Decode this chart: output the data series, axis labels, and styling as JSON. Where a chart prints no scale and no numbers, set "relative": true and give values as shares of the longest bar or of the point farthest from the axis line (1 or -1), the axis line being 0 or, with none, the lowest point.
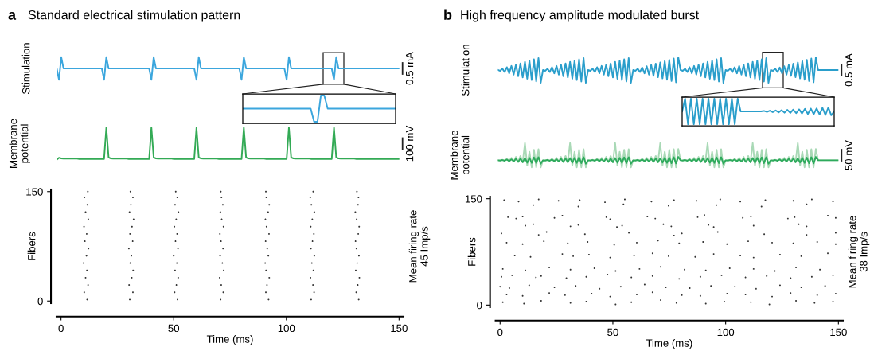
{
  "chart_data": [
    {
      "type": "line",
      "title": "Standard electrical stimulation pattern",
      "ylabel": "Stimulation",
      "annotations": [
        "a",
        "0.5 mA"
      ],
      "relative": true,
      "categories": [
        null,
        null,
        null,
        null,
        null,
        null,
        null,
        null,
        null,
        null,
        null,
        null,
        null,
        null,
        null,
        null,
        null,
        null,
        null,
        null,
        null,
        null,
        null,
        null,
        null,
        null,
        null,
        null,
        null,
        null,
        null,
        null,
        null,
        null,
        null,
        null,
        null,
        null,
        null,
        null,
        null,
        null,
        null,
        null,
        null,
        null,
        null,
        null,
        null,
        null,
        null,
        null,
        null,
        null,
        null,
        null,
        null,
        null,
        null,
        null,
        null,
        null,
        null,
        null,
        null,
        null,
        null,
        null,
        null,
        null,
        null,
        null,
        null,
        null,
        null,
        null,
        null,
        null,
        null,
        null,
        null,
        null,
        null,
        null,
        null,
        null,
        null,
        null,
        null,
        null,
        null,
        null,
        null,
        null,
        null,
        null,
        null,
        null,
        null,
        null,
        null,
        null,
        null,
        null,
        null,
        null,
        null,
        null,
        null,
        null,
        null,
        null,
        null,
        null,
        null,
        null,
        null,
        null,
        null,
        null,
        null,
        null,
        null,
        null,
        null,
        null,
        null,
        null,
        null,
        null,
        null,
        null,
        null,
        null,
        null,
        null,
        null,
        null,
        null,
        null,
        null,
        null,
        null,
        null,
        null,
        null,
        null,
        null,
        null,
        null,
        null,
        null,
        null
      ],
      "series": [
        {
          "color": "#3ba6dd",
          "values": [
            0.5,
            0,
            1,
            0.5,
            0.5,
            0.5,
            0.5,
            0.5,
            0.5,
            0.5,
            0.5,
            0.5,
            0.5,
            0.5,
            0.5,
            0.5,
            0.5,
            0.5,
            0.5,
            0.5,
            0.5,
            0,
            1,
            0.5,
            0.5,
            0.5,
            0.5,
            0.5,
            0.5,
            0.5,
            0.5,
            0.5,
            0.5,
            0.5,
            0.5,
            0.5,
            0.5,
            0.5,
            0.5,
            0.5,
            0.5,
            0.5,
            0,
            1,
            0.5,
            0.5,
            0.5,
            0.5,
            0.5,
            0.5,
            0.5,
            0.5,
            0.5,
            0.5,
            0.5,
            0.5,
            0.5,
            0.5,
            0.5,
            0.5,
            0.5,
            0.5,
            0,
            1,
            0.5,
            0.5,
            0.5,
            0.5,
            0.5,
            0.5,
            0.5,
            0.5,
            0.5,
            0.5,
            0.5,
            0.5,
            0.5,
            0.5,
            0.5,
            0.5,
            0.5,
            0.5,
            0,
            1,
            0.5,
            0.5,
            0.5,
            0.5,
            0.5,
            0.5,
            0.5,
            0.5,
            0.5,
            0.5,
            0.5,
            0.5,
            0.5,
            0.5,
            0.5,
            0.5,
            0.5,
            0.5,
            0,
            1,
            0.5,
            0.5,
            0.5,
            0.5,
            0.5,
            0.5,
            0.5,
            0.5,
            0.5,
            0.5,
            0.5,
            0.5,
            0.5,
            0.5,
            0.5,
            0.5,
            0.5,
            0.5,
            0.5,
            0,
            1,
            0.5,
            0.5,
            0.5,
            0.5,
            0.5,
            0.5,
            0.5,
            0.5,
            0.5,
            0.5,
            0.5,
            0.5,
            0.5,
            0.5,
            0.5,
            0.5,
            0.5,
            0.5,
            0.5,
            0.5,
            0.5,
            0.5,
            0.5,
            0.5,
            0.5,
            0.5,
            0.5,
            0.5
          ]
        }
      ]
    },
    {
      "type": "line",
      "relative": true,
      "categories": [
        null,
        null,
        null,
        null,
        null,
        null,
        null,
        null,
        null,
        null,
        null,
        null,
        null,
        null,
        null,
        null,
        null,
        null,
        null,
        null,
        null,
        null,
        null,
        null,
        null,
        null,
        null,
        null,
        null,
        null,
        null,
        null,
        null,
        null,
        null,
        null,
        null,
        null,
        null,
        null,
        null,
        null,
        null,
        null,
        null,
        null
      ],
      "series": [
        {
          "color": "#3ba6dd",
          "values": [
            0.5,
            0.5,
            0.5,
            0.5,
            0.5,
            0.5,
            0.5,
            0.5,
            0.5,
            0.5,
            0.5,
            0.5,
            0.5,
            0.5,
            0.5,
            0.5,
            0.5,
            0.5,
            0.5,
            0.5,
            0.5,
            0,
            0,
            1,
            1,
            0.5,
            0.5,
            0.5,
            0.5,
            0.5,
            0.5,
            0.5,
            0.5,
            0.5,
            0.5,
            0.5,
            0.5,
            0.5,
            0.5,
            0.5,
            0.5,
            0.5,
            0.5,
            0.5,
            0.5,
            0.5
          ]
        }
      ]
    },
    {
      "type": "line",
      "ylabel": "Membrane\npotential",
      "annotations": [
        "100 mV"
      ],
      "relative": true,
      "categories": [
        null,
        null,
        null,
        null,
        null,
        null,
        null,
        null,
        null,
        null,
        null,
        null,
        null,
        null,
        null,
        null,
        null,
        null,
        null,
        null,
        null,
        null,
        null,
        null,
        null,
        null,
        null,
        null,
        null,
        null,
        null,
        null,
        null,
        null,
        null,
        null,
        null,
        null,
        null,
        null,
        null,
        null,
        null,
        null,
        null,
        null,
        null,
        null,
        null,
        null,
        null,
        null,
        null,
        null,
        null,
        null,
        null,
        null,
        null,
        null,
        null,
        null,
        null,
        null,
        null,
        null,
        null,
        null,
        null,
        null,
        null,
        null,
        null,
        null,
        null,
        null,
        null,
        null,
        null,
        null,
        null,
        null,
        null,
        null,
        null,
        null,
        null,
        null,
        null,
        null,
        null,
        null,
        null,
        null,
        null,
        null,
        null,
        null,
        null,
        null,
        null,
        null,
        null,
        null,
        null,
        null,
        null,
        null,
        null,
        null,
        null,
        null,
        null,
        null,
        null,
        null,
        null,
        null,
        null,
        null,
        null,
        null,
        null,
        null,
        null,
        null,
        null,
        null,
        null,
        null,
        null,
        null,
        null,
        null,
        null,
        null,
        null,
        null,
        null,
        null,
        null,
        null,
        null,
        null,
        null,
        null,
        null,
        null,
        null,
        null,
        null,
        null,
        null
      ],
      "series": [
        {
          "color": "#33aa55",
          "values": [
            0,
            0.06,
            0.04,
            0.03,
            0.03,
            0.03,
            0.03,
            0.03,
            0.03,
            0.03,
            0.02,
            0.02,
            0.02,
            0.02,
            0.02,
            0.02,
            0.02,
            0.02,
            0.02,
            0.02,
            0.02,
            0.02,
            1,
            0.07,
            0.04,
            0.03,
            0.03,
            0.03,
            0.03,
            0.03,
            0.03,
            0.03,
            0.02,
            0.02,
            0.02,
            0.02,
            0.02,
            0.02,
            0.02,
            0.02,
            0.02,
            0.02,
            1,
            0.07,
            0.04,
            0.03,
            0.03,
            0.03,
            0.03,
            0.03,
            0.03,
            0.03,
            0.02,
            0.02,
            0.02,
            0.02,
            0.02,
            0.02,
            0.02,
            0.02,
            0.02,
            0.02,
            1,
            0.07,
            0.04,
            0.03,
            0.03,
            0.03,
            0.03,
            0.03,
            0.03,
            0.03,
            0.02,
            0.02,
            0.02,
            0.02,
            0.02,
            0.02,
            0.02,
            0.02,
            0.02,
            0.02,
            0.02,
            1,
            0.07,
            0.04,
            0.03,
            0.03,
            0.03,
            0.03,
            0.03,
            0.03,
            0.03,
            0.02,
            0.02,
            0.02,
            0.02,
            0.02,
            0.02,
            0.02,
            0.02,
            0.02,
            0.02,
            1,
            0.07,
            0.04,
            0.03,
            0.03,
            0.03,
            0.03,
            0.03,
            0.03,
            0.03,
            0.02,
            0.02,
            0.02,
            0.02,
            0.02,
            0.02,
            0.02,
            0.02,
            0.02,
            0.02,
            1,
            0.07,
            0.04,
            0.03,
            0.03,
            0.03,
            0.03,
            0.03,
            0.03,
            0.03,
            0.02,
            0.02,
            0.02,
            0.02,
            0.02,
            0.02,
            0.02,
            0.02,
            0.02,
            0.02,
            0.02,
            0.02,
            0.02,
            0.02,
            0.02,
            0.02,
            0.02,
            0.02,
            0.02,
            0.02
          ]
        }
      ]
    },
    {
      "type": "scatter",
      "xlabel": "Time (ms)",
      "ylabel": "Fibers",
      "annotations": [
        "Mean firing rate\n45 Imp/s"
      ],
      "xlim": [
        -2,
        152
      ],
      "ylim": [
        -3,
        153
      ],
      "xticks": [
        0,
        50,
        100,
        150
      ],
      "yticks": [
        0,
        150
      ],
      "marker": "circle",
      "series": [
        {
          "color": "#333333",
          "x": [
            11.6,
            10.3,
            12.0,
            10.9,
            11.5,
            10.0,
            11.3,
            12.2,
            10.6,
            11.4,
            10.2,
            12.1,
            10.9,
            11.7,
            10.4,
            11.9,
            30.5,
            31.9,
            30.2,
            31.4,
            32.0,
            30.7,
            31.2,
            30.1,
            31.8,
            30.6,
            31.5,
            32.2,
            30.4,
            31.0,
            31.9,
            30.8,
            51.7,
            50.4,
            51.2,
            52.0,
            50.6,
            51.4,
            50.0,
            51.9,
            50.8,
            51.5,
            50.3,
            51.1,
            52.1,
            50.6,
            51.6,
            50.9,
            70.8,
            72.0,
            71.1,
            70.4,
            72.2,
            71.6,
            70.6,
            71.9,
            71.0,
            70.5,
            72.1,
            71.3,
            70.7,
            71.8,
            71.2,
            70.9,
            92.1,
            90.9,
            91.4,
            92.4,
            91.0,
            90.6,
            92.0,
            91.5,
            90.8,
            92.3,
            91.2,
            90.7,
            91.9,
            92.4,
            91.1,
            90.9,
            111.0,
            112.3,
            111.8,
            110.7,
            112.0,
            111.3,
            112.4,
            110.9,
            111.6,
            112.2,
            110.8,
            111.5,
            112.4,
            111.1,
            110.6,
            111.9,
            132.1,
            131.0,
            131.7,
            132.4,
            130.8,
            131.4,
            132.2,
            131.1,
            130.7,
            131.9,
            132.3,
            131.2,
            130.6,
            131.8,
            132.0,
            131.3
          ],
          "values": [
            2,
            12,
            22,
            32,
            42,
            52,
            62,
            72,
            82,
            92,
            102,
            112,
            122,
            132,
            142,
            150,
            2,
            12,
            22,
            32,
            42,
            52,
            62,
            72,
            82,
            92,
            102,
            112,
            122,
            132,
            142,
            150,
            2,
            12,
            22,
            32,
            42,
            52,
            62,
            72,
            82,
            92,
            102,
            112,
            122,
            132,
            142,
            150,
            2,
            12,
            22,
            32,
            42,
            52,
            62,
            72,
            82,
            92,
            102,
            112,
            122,
            132,
            142,
            150,
            2,
            12,
            22,
            32,
            42,
            52,
            62,
            72,
            82,
            92,
            102,
            112,
            122,
            132,
            142,
            150,
            2,
            12,
            22,
            32,
            42,
            52,
            62,
            72,
            82,
            92,
            102,
            112,
            122,
            132,
            142,
            150,
            2,
            12,
            22,
            32,
            42,
            52,
            62,
            72,
            82,
            92,
            102,
            112,
            122,
            132,
            142,
            150
          ]
        }
      ]
    },
    {
      "type": "line",
      "title": "High frequency amplitude modulated burst",
      "ylabel": "Stimulation",
      "annotations": [
        "b",
        "0.5 mA"
      ],
      "relative": true,
      "categories": [
        null,
        null,
        null,
        null,
        null,
        null,
        null,
        null,
        null,
        null,
        null,
        null,
        null,
        null,
        null,
        null,
        null,
        null,
        null,
        null,
        null,
        null,
        null,
        null,
        null,
        null,
        null,
        null,
        null,
        null,
        null,
        null,
        null,
        null,
        null,
        null,
        null,
        null,
        null,
        null,
        null,
        null,
        null,
        null,
        null,
        null,
        null,
        null,
        null,
        null,
        null,
        null,
        null,
        null,
        null,
        null,
        null,
        null,
        null,
        null,
        null,
        null,
        null,
        null,
        null,
        null,
        null,
        null,
        null,
        null,
        null,
        null,
        null,
        null,
        null,
        null,
        null,
        null,
        null,
        null,
        null,
        null,
        null,
        null,
        null,
        null,
        null,
        null,
        null,
        null,
        null,
        null,
        null,
        null,
        null,
        null,
        null,
        null,
        null,
        null,
        null,
        null,
        null,
        null,
        null,
        null,
        null,
        null,
        null,
        null,
        null,
        null,
        null,
        null,
        null,
        null,
        null,
        null,
        null,
        null,
        null,
        null,
        null,
        null,
        null,
        null,
        null,
        null,
        null,
        null,
        null,
        null,
        null,
        null,
        null,
        null,
        null,
        null,
        null,
        null,
        null,
        null,
        null,
        null,
        null,
        null,
        null,
        null,
        null,
        null,
        null,
        null
      ],
      "series": [
        {
          "color": "#2a9ecb",
          "values": [
            0.5,
            0.47,
            0.55,
            0.42,
            0.61,
            0.37,
            0.66,
            0.32,
            0.71,
            0.26,
            0.76,
            0.21,
            0.82,
            0.16,
            0.87,
            0.11,
            0.92,
            0.05,
            0.97,
            0,
            0.5,
            0.47,
            0.55,
            0.42,
            0.61,
            0.37,
            0.66,
            0.32,
            0.71,
            0.26,
            0.76,
            0.21,
            0.82,
            0.16,
            0.87,
            0.11,
            0.92,
            0.05,
            0.97,
            0,
            0.5,
            0.47,
            0.55,
            0.42,
            0.61,
            0.37,
            0.66,
            0.32,
            0.71,
            0.26,
            0.76,
            0.21,
            0.82,
            0.16,
            0.87,
            0.11,
            0.92,
            0.05,
            0.97,
            0,
            0.5,
            0.47,
            0.55,
            0.42,
            0.6,
            0.37,
            0.65,
            0.32,
            0.7,
            0.27,
            0.75,
            0.22,
            0.8,
            0.17,
            0.85,
            0.12,
            0.9,
            0.07,
            0.95,
            0.02,
            1.0,
            0.5,
            0.47,
            0.55,
            0.42,
            0.61,
            0.37,
            0.66,
            0.32,
            0.71,
            0.26,
            0.76,
            0.21,
            0.82,
            0.16,
            0.87,
            0.11,
            0.92,
            0.05,
            0.97,
            0,
            0.5,
            0.47,
            0.55,
            0.42,
            0.61,
            0.37,
            0.66,
            0.32,
            0.71,
            0.26,
            0.76,
            0.21,
            0.82,
            0.16,
            0.87,
            0.11,
            0.92,
            0.05,
            0.97,
            0,
            0.5,
            0.47,
            0.55,
            0.42,
            0.6,
            0.37,
            0.65,
            0.32,
            0.7,
            0.27,
            0.75,
            0.22,
            0.8,
            0.17,
            0.85,
            0.12,
            0.9,
            0.07,
            0.95,
            0.02,
            1.0,
            0.5,
            0.5,
            0.5,
            0.5,
            0.5,
            0.5,
            0.5,
            0.5,
            0.5,
            0.5
          ]
        }
      ]
    },
    {
      "type": "line",
      "relative": true,
      "categories": [
        null,
        null,
        null,
        null,
        null,
        null,
        null,
        null,
        null,
        null,
        null,
        null,
        null,
        null,
        null,
        null,
        null,
        null,
        null,
        null,
        null,
        null,
        null,
        null,
        null,
        null,
        null,
        null,
        null,
        null,
        null,
        null,
        null,
        null,
        null,
        null,
        null,
        null,
        null,
        null,
        null,
        null,
        null,
        null,
        null,
        null,
        null,
        null,
        null,
        null,
        null,
        null,
        null
      ],
      "series": [
        {
          "color": "#2a9ecb",
          "values": [
            0.5,
            1,
            0,
            1,
            0,
            1,
            0,
            1,
            0,
            1,
            0,
            1,
            0,
            1,
            0,
            1,
            0,
            1,
            0,
            1,
            0.5,
            0.5,
            0.5,
            0.5,
            0.5,
            0.5,
            0.5,
            0.5,
            0.52,
            0.48,
            0.53,
            0.47,
            0.54,
            0.46,
            0.55,
            0.45,
            0.56,
            0.44,
            0.57,
            0.43,
            0.58,
            0.42,
            0.6,
            0.4,
            0.61,
            0.39,
            0.62,
            0.38,
            0.64,
            0.36,
            0.65,
            0.35,
            0.5
          ]
        }
      ]
    },
    {
      "type": "line",
      "ylabel": "Membrane\npotential",
      "annotations": [
        "50 mV"
      ],
      "relative": true,
      "categories": [
        null,
        null,
        null,
        null,
        null,
        null,
        null,
        null,
        null,
        null,
        null,
        null,
        null,
        null,
        null,
        null,
        null,
        null,
        null,
        null,
        null,
        null,
        null,
        null,
        null,
        null,
        null,
        null,
        null,
        null,
        null,
        null,
        null,
        null,
        null,
        null,
        null,
        null,
        null,
        null,
        null,
        null,
        null,
        null,
        null,
        null,
        null,
        null,
        null,
        null,
        null,
        null,
        null,
        null,
        null,
        null,
        null,
        null,
        null,
        null,
        null,
        null,
        null,
        null,
        null,
        null,
        null,
        null,
        null,
        null,
        null,
        null,
        null,
        null,
        null,
        null,
        null,
        null,
        null,
        null,
        null,
        null,
        null,
        null,
        null,
        null,
        null,
        null,
        null,
        null,
        null,
        null,
        null,
        null,
        null,
        null,
        null,
        null,
        null,
        null,
        null,
        null,
        null,
        null,
        null,
        null,
        null,
        null,
        null,
        null,
        null,
        null,
        null,
        null,
        null,
        null,
        null,
        null,
        null,
        null,
        null,
        null,
        null,
        null,
        null,
        null,
        null,
        null,
        null,
        null,
        null,
        null,
        null,
        null,
        null,
        null,
        null,
        null,
        null,
        null,
        null,
        null,
        null,
        null,
        null,
        null,
        null,
        null,
        null,
        null,
        null,
        null
      ],
      "series": [
        {
          "color": "#a9d9b6",
          "values": [
            0.29,
            0.29,
            0.31,
            0.28,
            0.35,
            0.27,
            0.39,
            0.25,
            0.43,
            0.23,
            0.47,
            0.21,
            1,
            0.07,
            0.64,
            0,
            0.72,
            0,
            0.75,
            0,
            0.29,
            0.29,
            0.31,
            0.28,
            0.35,
            0.27,
            0.39,
            0.25,
            0.43,
            0.23,
            0.47,
            0.21,
            1,
            0.07,
            0.64,
            0,
            0.72,
            0,
            0.75,
            0,
            0.29,
            0.29,
            0.31,
            0.28,
            0.35,
            0.27,
            0.39,
            0.25,
            0.43,
            0.23,
            0.47,
            0.21,
            1,
            0.07,
            0.64,
            0,
            0.72,
            0,
            0.75,
            0,
            0.29,
            0.29,
            0.31,
            0.28,
            0.35,
            0.27,
            0.39,
            0.25,
            0.43,
            0.23,
            0.47,
            0.21,
            1,
            0.07,
            0.64,
            0,
            0.72,
            0,
            0.75,
            0,
            0.76,
            0.29,
            0.29,
            0.31,
            0.28,
            0.35,
            0.27,
            0.39,
            0.25,
            0.43,
            0.23,
            0.47,
            0.21,
            1,
            0.07,
            0.64,
            0,
            0.72,
            0,
            0.75,
            0,
            0.29,
            0.29,
            0.31,
            0.28,
            0.35,
            0.27,
            0.39,
            0.25,
            0.43,
            0.23,
            0.47,
            0.21,
            1,
            0.07,
            0.64,
            0,
            0.72,
            0,
            0.75,
            0,
            0.29,
            0.29,
            0.31,
            0.28,
            0.35,
            0.27,
            0.39,
            0.25,
            0.43,
            0.23,
            0.47,
            0.21,
            1,
            0.07,
            0.64,
            0,
            0.72,
            0,
            0.75,
            0,
            0.76,
            0.29,
            0.29,
            0.29,
            0.29,
            0.29,
            0.29,
            0.29,
            0.29,
            0.29,
            0.29
          ]
        },
        {
          "color": "#2eaa5c",
          "values": [
            0.29,
            0.28,
            0.3,
            0.27,
            0.32,
            0.25,
            0.33,
            0.24,
            0.35,
            0.22,
            0.36,
            0.21,
            0.38,
            0.19,
            0.39,
            0.18,
            0.41,
            0.17,
            0.42,
            0.15,
            0.29,
            0.28,
            0.3,
            0.27,
            0.32,
            0.25,
            0.33,
            0.24,
            0.35,
            0.22,
            0.36,
            0.21,
            0.38,
            0.19,
            0.39,
            0.18,
            0.41,
            0.17,
            0.42,
            0.15,
            0.29,
            0.28,
            0.3,
            0.27,
            0.32,
            0.25,
            0.33,
            0.24,
            0.35,
            0.22,
            0.36,
            0.21,
            0.38,
            0.19,
            0.39,
            0.18,
            0.41,
            0.17,
            0.42,
            0.15,
            0.29,
            0.28,
            0.3,
            0.27,
            0.32,
            0.25,
            0.33,
            0.24,
            0.35,
            0.23,
            0.36,
            0.21,
            0.37,
            0.2,
            0.39,
            0.18,
            0.4,
            0.17,
            0.42,
            0.16,
            0.43,
            0.29,
            0.28,
            0.3,
            0.27,
            0.32,
            0.25,
            0.33,
            0.24,
            0.35,
            0.22,
            0.36,
            0.21,
            0.38,
            0.19,
            0.39,
            0.18,
            0.41,
            0.17,
            0.42,
            0.15,
            0.29,
            0.28,
            0.3,
            0.27,
            0.32,
            0.25,
            0.33,
            0.24,
            0.35,
            0.22,
            0.36,
            0.21,
            0.38,
            0.19,
            0.39,
            0.18,
            0.41,
            0.17,
            0.42,
            0.15,
            0.29,
            0.28,
            0.3,
            0.27,
            0.32,
            0.25,
            0.33,
            0.24,
            0.35,
            0.23,
            0.36,
            0.21,
            0.37,
            0.2,
            0.39,
            0.18,
            0.4,
            0.17,
            0.42,
            0.16,
            0.43,
            0.29,
            0.29,
            0.29,
            0.29,
            0.29,
            0.29,
            0.29,
            0.29,
            0.29,
            0.29
          ]
        }
      ]
    },
    {
      "type": "scatter",
      "xlabel": "Time (ms)",
      "ylabel": "Fibers",
      "annotations": [
        "Mean firing rate\n38 Imp/s"
      ],
      "xlim": [
        -2,
        152
      ],
      "ylim": [
        -3,
        153
      ],
      "xticks": [
        0,
        50,
        100,
        150
      ],
      "yticks": [
        0,
        150
      ],
      "marker": "circle",
      "series": [
        {
          "color": "#333333",
          "x": [
            1.8,
            8.2,
            17.1,
            25.9,
            35.3,
            46.5,
            55.3,
            67.1,
            77.1,
            87.1,
            97.6,
            106.5,
            117.6,
            130,
            138.2,
            147.6,
            14.7,
            34.7,
            54.7,
            74.7,
            95.9,
            115.9,
            135.9,
            3.5,
            7.1,
            10,
            24.1,
            27.6,
            47.1,
            48.8,
            65.3,
            68.8,
            87.6,
            90.6,
            107.6,
            111.2,
            127.6,
            130.6,
            145.3,
            148.8,
            11.2,
            14.7,
            31.2,
            34.7,
            51.8,
            54.1,
            72.4,
            75.9,
            92.4,
            94.7,
            112.4,
            132.4,
            135.9,
            0.6,
            17.1,
            20.6,
            37.6,
            57.1,
            77.1,
            80.6,
            96.5,
            117.1,
            135.9,
            148.8,
            2.9,
            10,
            19.4,
            30,
            38.8,
            50.6,
            60.6,
            70,
            79.4,
            90,
            100.6,
            110,
            120.6,
            130,
            140.6,
            148.8,
            6.5,
            13.5,
            27.6,
            32.4,
            39.4,
            48.8,
            59.4,
            67.6,
            74.7,
            86.5,
            94.7,
            106.5,
            112.4,
            124.1,
            133.5,
            145.3,
            1.2,
            11.2,
            21.8,
            31.2,
            41.8,
            51.2,
            61.8,
            71.2,
            81.8,
            91.2,
            101.8,
            112.4,
            121.8,
            131.2,
            141.8,
            0.6,
            5.3,
            15.9,
            18.2,
            29.4,
            38.2,
            47.6,
            58.2,
            67.6,
            79.4,
            88.8,
            98.2,
            108.8,
            118.2,
            128.8,
            138.2,
            147.6,
            0,
            4.1,
            12.9,
            24.1,
            33.5,
            44.1,
            53.5,
            64.1,
            73.5,
            84.1,
            93.5,
            104.1,
            113.5,
            124.1,
            133.5,
            144.1,
            2.9,
            10,
            21.8,
            28.8,
            40.6,
            48.8,
            60.6,
            67.6,
            80.6,
            88.8,
            100.6,
            108.8,
            120.6,
            128.8,
            140.6,
            148.8,
            1.2,
            10.6,
            18.2,
            31.2,
            38.2,
            51.2,
            58.2,
            71.2,
            78.2,
            91.2,
            99.4,
            111.2,
            119.4,
            131.2,
            139.4,
            147.6
          ],
          "values": [
            148,
            146,
            149,
            147,
            148,
            145,
            149,
            146,
            148,
            147,
            149,
            146,
            148,
            147,
            149,
            146,
            141,
            139,
            142,
            140,
            141,
            139,
            142,
            124,
            122,
            125,
            123,
            126,
            124,
            121,
            125,
            122,
            124,
            127,
            123,
            125,
            122,
            124,
            126,
            123,
            112,
            114,
            111,
            113,
            110,
            112,
            114,
            111,
            113,
            110,
            112,
            114,
            111,
            101,
            99,
            103,
            100,
            102,
            98,
            101,
            103,
            100,
            99,
            102,
            88,
            86,
            90,
            87,
            89,
            85,
            88,
            91,
            87,
            89,
            86,
            90,
            88,
            87,
            89,
            86,
            70,
            68,
            72,
            69,
            71,
            67,
            70,
            73,
            69,
            68,
            72,
            70,
            67,
            71,
            69,
            73,
            51,
            49,
            53,
            50,
            52,
            48,
            51,
            54,
            50,
            49,
            52,
            51,
            48,
            53,
            50,
            40,
            42,
            39,
            41,
            38,
            40,
            43,
            39,
            41,
            37,
            40,
            42,
            39,
            41,
            38,
            40,
            42,
            26,
            24,
            28,
            25,
            27,
            23,
            26,
            29,
            25,
            24,
            27,
            26,
            23,
            28,
            25,
            27,
            15,
            13,
            17,
            14,
            16,
            12,
            15,
            18,
            14,
            13,
            16,
            15,
            12,
            17,
            14,
            16,
            4,
            2,
            6,
            3,
            5,
            1,
            4,
            7,
            3,
            2,
            5,
            4,
            1,
            6,
            3,
            5
          ]
        }
      ]
    }
  ]
}
